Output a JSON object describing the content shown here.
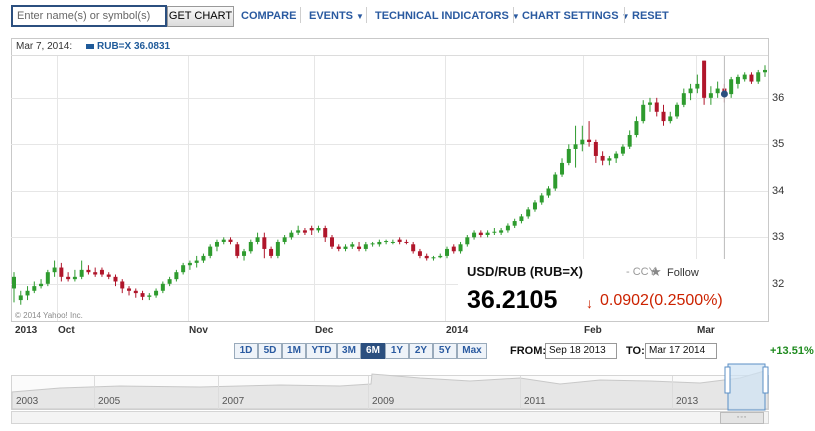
{
  "toolbar": {
    "symbol_placeholder": "Enter name(s) or symbol(s)",
    "get_chart_label": "GET CHART",
    "compare_label": "COMPARE",
    "events_label": "EVENTS",
    "technical_label": "TECHNICAL INDICATORS",
    "settings_label": "CHART SETTINGS",
    "reset_label": "RESET",
    "caret_icon": "caret-down-icon"
  },
  "legend": {
    "date": "Mar 7, 2014:",
    "series": "RUB=X 36.0831",
    "color": "#1f5a99"
  },
  "watermark": "© 2014 Yahoo! Inc.",
  "quote": {
    "title": "USD/RUB (RUB=X)",
    "ccy": "- CCY",
    "follow_label": "Follow",
    "star_icon": "star-icon",
    "price": "36.2105",
    "arrow": "↓",
    "change": "0.0902(0.2500%)",
    "change_color": "#cc2200"
  },
  "range_buttons": [
    "1D",
    "5D",
    "1M",
    "YTD",
    "3M",
    "6M",
    "1Y",
    "2Y",
    "5Y",
    "Max"
  ],
  "range_selected": "6M",
  "date_range": {
    "from_label": "FROM:",
    "from_value": "Sep 18 2013",
    "to_label": "TO:",
    "to_value": "Mar 17 2014",
    "change_pct": "+13.51%"
  },
  "navigator_years": [
    "2003",
    "2005",
    "2007",
    "2009",
    "2011",
    "2013"
  ],
  "chart_data": {
    "type": "candlestick",
    "series_name": "RUB=X",
    "colors": {
      "up": "#2e9b2e",
      "down": "#b0162b"
    },
    "ylim": [
      31.2,
      36.9
    ],
    "yticks": [
      32,
      33,
      34,
      35,
      36
    ],
    "xticks": [
      "2013",
      "Oct",
      "Nov",
      "Dec",
      "2014",
      "Feb",
      "Mar"
    ],
    "candles": [
      [
        31.9,
        32.25,
        31.6,
        32.15
      ],
      [
        31.65,
        31.85,
        31.55,
        31.75
      ],
      [
        31.75,
        31.95,
        31.65,
        31.85
      ],
      [
        31.85,
        32.05,
        31.8,
        31.95
      ],
      [
        31.95,
        32.1,
        31.9,
        32.0
      ],
      [
        32.0,
        32.3,
        31.95,
        32.25
      ],
      [
        32.25,
        32.5,
        32.15,
        32.35
      ],
      [
        32.35,
        32.45,
        32.05,
        32.15
      ],
      [
        32.15,
        32.25,
        32.05,
        32.1
      ],
      [
        32.1,
        32.3,
        32.05,
        32.15
      ],
      [
        32.15,
        32.5,
        32.1,
        32.3
      ],
      [
        32.3,
        32.4,
        32.2,
        32.25
      ],
      [
        32.25,
        32.35,
        32.15,
        32.2
      ],
      [
        32.3,
        32.35,
        32.15,
        32.2
      ],
      [
        32.2,
        32.25,
        32.1,
        32.15
      ],
      [
        32.15,
        32.2,
        31.95,
        32.05
      ],
      [
        32.05,
        32.1,
        31.8,
        31.9
      ],
      [
        31.9,
        31.95,
        31.75,
        31.85
      ],
      [
        31.85,
        31.9,
        31.7,
        31.8
      ],
      [
        31.8,
        31.85,
        31.65,
        31.72
      ],
      [
        31.72,
        31.8,
        31.65,
        31.75
      ],
      [
        31.75,
        31.9,
        31.7,
        31.85
      ],
      [
        31.85,
        32.05,
        31.8,
        32.0
      ],
      [
        32.0,
        32.15,
        31.95,
        32.1
      ],
      [
        32.1,
        32.3,
        32.05,
        32.25
      ],
      [
        32.25,
        32.45,
        32.2,
        32.4
      ],
      [
        32.4,
        32.5,
        32.3,
        32.45
      ],
      [
        32.45,
        32.6,
        32.35,
        32.5
      ],
      [
        32.5,
        32.65,
        32.45,
        32.6
      ],
      [
        32.6,
        32.85,
        32.55,
        32.8
      ],
      [
        32.8,
        32.95,
        32.7,
        32.9
      ],
      [
        32.9,
        33.0,
        32.85,
        32.95
      ],
      [
        32.95,
        33.0,
        32.85,
        32.9
      ],
      [
        32.85,
        32.9,
        32.55,
        32.6
      ],
      [
        32.6,
        32.75,
        32.5,
        32.7
      ],
      [
        32.7,
        32.95,
        32.65,
        32.9
      ],
      [
        32.9,
        33.1,
        32.85,
        33.0
      ],
      [
        33.0,
        33.1,
        32.55,
        32.75
      ],
      [
        32.75,
        32.8,
        32.55,
        32.6
      ],
      [
        32.6,
        32.95,
        32.55,
        32.9
      ],
      [
        32.9,
        33.05,
        32.85,
        33.0
      ],
      [
        33.0,
        33.15,
        32.95,
        33.1
      ],
      [
        33.1,
        33.25,
        33.05,
        33.15
      ],
      [
        33.15,
        33.2,
        33.05,
        33.1
      ],
      [
        33.2,
        33.25,
        33.05,
        33.15
      ],
      [
        33.15,
        33.25,
        33.1,
        33.2
      ],
      [
        33.2,
        33.25,
        32.9,
        33.0
      ],
      [
        33.0,
        33.05,
        32.75,
        32.8
      ],
      [
        32.8,
        32.85,
        32.7,
        32.75
      ],
      [
        32.75,
        32.85,
        32.7,
        32.8
      ],
      [
        32.8,
        32.9,
        32.75,
        32.85
      ],
      [
        32.8,
        32.9,
        32.7,
        32.75
      ],
      [
        32.75,
        32.9,
        32.7,
        32.85
      ],
      [
        32.85,
        32.9,
        32.8,
        32.87
      ],
      [
        32.85,
        32.95,
        32.8,
        32.9
      ],
      [
        32.9,
        32.95,
        32.85,
        32.92
      ],
      [
        32.9,
        32.95,
        32.85,
        32.9
      ],
      [
        32.95,
        33.0,
        32.85,
        32.9
      ],
      [
        32.9,
        32.95,
        32.85,
        32.88
      ],
      [
        32.85,
        32.9,
        32.65,
        32.7
      ],
      [
        32.7,
        32.75,
        32.55,
        32.6
      ],
      [
        32.6,
        32.65,
        32.5,
        32.55
      ],
      [
        32.55,
        32.6,
        32.5,
        32.57
      ],
      [
        32.57,
        32.65,
        32.55,
        32.6
      ],
      [
        32.6,
        32.8,
        32.55,
        32.75
      ],
      [
        32.8,
        32.85,
        32.65,
        32.7
      ],
      [
        32.7,
        32.9,
        32.65,
        32.85
      ],
      [
        32.85,
        33.05,
        32.8,
        33.0
      ],
      [
        33.0,
        33.15,
        32.95,
        33.1
      ],
      [
        33.1,
        33.15,
        33.0,
        33.05
      ],
      [
        33.05,
        33.15,
        33.0,
        33.1
      ],
      [
        33.1,
        33.2,
        33.05,
        33.12
      ],
      [
        33.1,
        33.2,
        33.05,
        33.15
      ],
      [
        33.15,
        33.3,
        33.1,
        33.25
      ],
      [
        33.25,
        33.4,
        33.2,
        33.35
      ],
      [
        33.35,
        33.5,
        33.3,
        33.45
      ],
      [
        33.45,
        33.65,
        33.4,
        33.6
      ],
      [
        33.6,
        33.8,
        33.55,
        33.75
      ],
      [
        33.75,
        33.95,
        33.7,
        33.9
      ],
      [
        33.9,
        34.1,
        33.85,
        34.05
      ],
      [
        34.05,
        34.4,
        34.0,
        34.35
      ],
      [
        34.35,
        34.7,
        34.3,
        34.6
      ],
      [
        34.6,
        35.0,
        34.55,
        34.9
      ],
      [
        34.9,
        35.4,
        34.5,
        35.0
      ],
      [
        35.0,
        35.4,
        34.85,
        35.1
      ],
      [
        35.1,
        35.5,
        34.95,
        35.05
      ],
      [
        35.05,
        35.1,
        34.6,
        34.75
      ],
      [
        34.75,
        34.85,
        34.55,
        34.65
      ],
      [
        34.65,
        34.75,
        34.55,
        34.7
      ],
      [
        34.7,
        34.85,
        34.6,
        34.8
      ],
      [
        34.8,
        35.0,
        34.75,
        34.95
      ],
      [
        34.95,
        35.3,
        34.9,
        35.2
      ],
      [
        35.2,
        35.6,
        35.15,
        35.5
      ],
      [
        35.5,
        35.95,
        35.45,
        35.85
      ],
      [
        35.85,
        36.0,
        35.7,
        35.9
      ],
      [
        35.9,
        36.0,
        35.6,
        35.7
      ],
      [
        35.7,
        35.85,
        35.4,
        35.5
      ],
      [
        35.5,
        35.7,
        35.45,
        35.6
      ],
      [
        35.6,
        35.9,
        35.55,
        35.85
      ],
      [
        35.85,
        36.2,
        35.8,
        36.1
      ],
      [
        36.1,
        36.3,
        35.95,
        36.2
      ],
      [
        36.2,
        36.5,
        36.1,
        36.3
      ],
      [
        36.8,
        36.8,
        35.85,
        36.0
      ],
      [
        36.0,
        36.25,
        35.85,
        36.1
      ],
      [
        36.1,
        36.35,
        36.0,
        36.2
      ],
      [
        36.2,
        36.3,
        35.9,
        36.08
      ],
      [
        36.08,
        36.45,
        36.0,
        36.4
      ],
      [
        36.3,
        36.5,
        36.2,
        36.45
      ],
      [
        36.4,
        36.55,
        36.35,
        36.5
      ],
      [
        36.5,
        36.55,
        36.3,
        36.35
      ],
      [
        36.35,
        36.6,
        36.3,
        36.55
      ],
      [
        36.55,
        36.7,
        36.45,
        36.6
      ]
    ],
    "highlight": {
      "label": "Mar 7, 2014",
      "close": 36.0831
    }
  }
}
